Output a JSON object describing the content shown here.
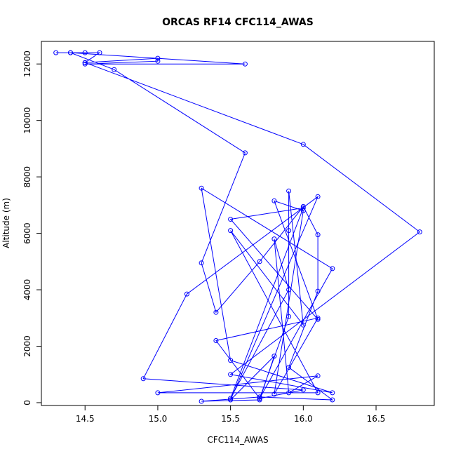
{
  "chart_data": {
    "type": "line",
    "title": "ORCAS RF14 CFC114_AWAS",
    "xlabel": "CFC114_AWAS",
    "ylabel": "Altitude (m)",
    "xlim": [
      14.2,
      16.9
    ],
    "ylim": [
      -100,
      12800
    ],
    "xticks": [
      14.5,
      15.0,
      15.5,
      16.0,
      16.5
    ],
    "xtick_labels": [
      "14.5",
      "15.0",
      "15.5",
      "16.0",
      "16.5"
    ],
    "yticks": [
      0,
      2000,
      4000,
      6000,
      8000,
      10000,
      12000
    ],
    "ytick_labels": [
      "0",
      "2000",
      "4000",
      "6000",
      "8000",
      "10000",
      "12000"
    ],
    "grid": false,
    "legend": "none",
    "colors": {
      "series": "#0000ff",
      "axis": "#000000",
      "background": "#ffffff"
    },
    "series": [
      {
        "marker": "open-circle",
        "points": [
          [
            14.3,
            12400
          ],
          [
            14.4,
            12400
          ],
          [
            14.5,
            12400
          ],
          [
            14.6,
            12400
          ],
          [
            14.5,
            12050
          ],
          [
            15.0,
            12200
          ],
          [
            15.0,
            12100
          ],
          [
            14.5,
            12000
          ],
          [
            15.6,
            12000
          ],
          [
            14.4,
            12400
          ],
          [
            14.7,
            11800
          ],
          [
            15.6,
            8850
          ],
          [
            15.3,
            4950
          ],
          [
            15.4,
            3200
          ],
          [
            15.7,
            5000
          ],
          [
            16.0,
            6950
          ],
          [
            16.1,
            5950
          ],
          [
            16.1,
            3950
          ],
          [
            15.9,
            1250
          ],
          [
            16.2,
            100
          ],
          [
            15.7,
            200
          ],
          [
            15.3,
            50
          ],
          [
            15.7,
            100
          ],
          [
            15.8,
            1650
          ],
          [
            15.5,
            100
          ],
          [
            16.1,
            7300
          ],
          [
            15.2,
            3850
          ],
          [
            14.9,
            850
          ],
          [
            16.0,
            450
          ],
          [
            15.7,
            150
          ],
          [
            15.4,
            2200
          ],
          [
            16.1,
            3000
          ],
          [
            15.8,
            300
          ],
          [
            16.0,
            6800
          ],
          [
            15.8,
            7150
          ],
          [
            16.1,
            2950
          ],
          [
            15.5,
            6500
          ],
          [
            16.0,
            6900
          ],
          [
            15.5,
            150
          ],
          [
            15.9,
            4000
          ],
          [
            15.8,
            5800
          ],
          [
            15.9,
            350
          ],
          [
            16.1,
            950
          ],
          [
            15.0,
            350
          ],
          [
            16.1,
            350
          ],
          [
            15.5,
            6100
          ],
          [
            16.0,
            2750
          ],
          [
            15.9,
            7500
          ],
          [
            15.9,
            6100
          ],
          [
            15.9,
            3050
          ],
          [
            15.7,
            150
          ],
          [
            16.2,
            4750
          ],
          [
            15.3,
            7600
          ],
          [
            15.5,
            1500
          ],
          [
            16.2,
            350
          ],
          [
            15.5,
            1000
          ],
          [
            16.8,
            6050
          ],
          [
            16.0,
            9150
          ],
          [
            14.5,
            12050
          ]
        ]
      }
    ]
  }
}
